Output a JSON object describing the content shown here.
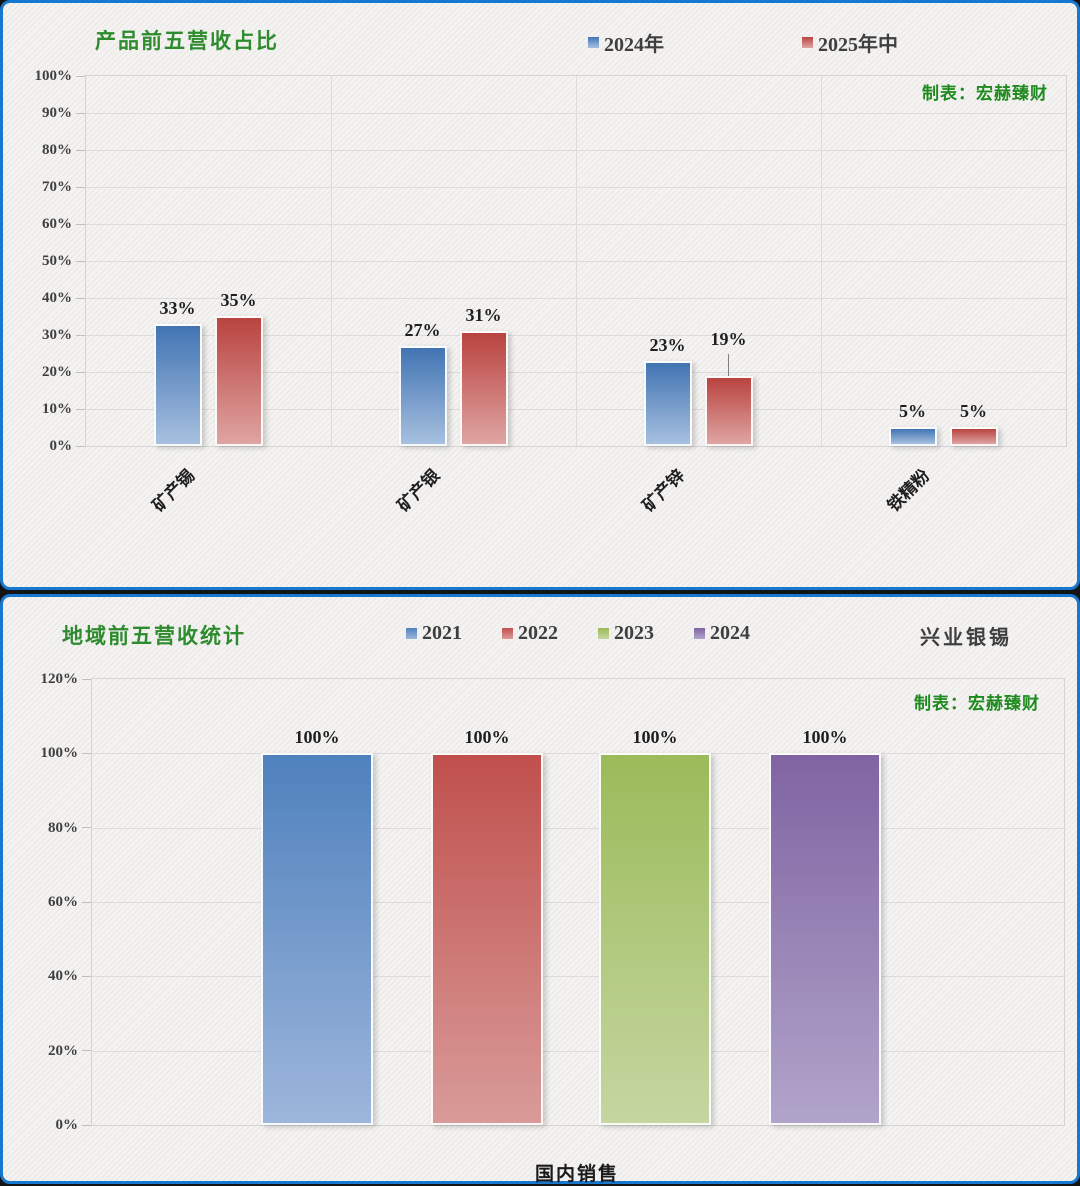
{
  "page": {
    "panel_border_color": "#1778cf",
    "title_color": "#2e8b2e",
    "background_texture": "light-diagonal-hatch"
  },
  "chart_data": [
    {
      "type": "bar",
      "title": "产品前五营收占比",
      "credit": "制表：宏赫臻财",
      "categories": [
        "矿产锡",
        "矿产银",
        "矿产锌",
        "铁精粉"
      ],
      "series": [
        {
          "name": "2024年",
          "values": [
            33,
            27,
            23,
            5
          ],
          "color_top": "#4274b3",
          "color_bottom": "#a7c0df"
        },
        {
          "name": "2025年中",
          "values": [
            35,
            31,
            19,
            5
          ],
          "color_top": "#b9433f",
          "color_bottom": "#dfa5a3"
        }
      ],
      "value_labels": [
        [
          "33%",
          "27%",
          "23%",
          "5%"
        ],
        [
          "35%",
          "31%",
          "19%",
          "5%"
        ]
      ],
      "ylim": [
        0,
        100
      ],
      "y_ticks": [
        "0%",
        "10%",
        "20%",
        "30%",
        "40%",
        "50%",
        "60%",
        "70%",
        "80%",
        "90%",
        "100%"
      ],
      "grid": true,
      "legend_position": "top"
    },
    {
      "type": "bar",
      "title": "地域前五营收统计",
      "company": "兴业银锡",
      "credit": "制表：宏赫臻财",
      "categories": [
        "国内销售"
      ],
      "xlabel": "国内销售",
      "series": [
        {
          "name": "2021",
          "values": [
            100
          ],
          "color_top": "#4f81bd",
          "color_bottom": "#9db6db"
        },
        {
          "name": "2022",
          "values": [
            100
          ],
          "color_top": "#c0504d",
          "color_bottom": "#d99b99"
        },
        {
          "name": "2023",
          "values": [
            100
          ],
          "color_top": "#9bbb59",
          "color_bottom": "#c5d6a1"
        },
        {
          "name": "2024",
          "values": [
            100
          ],
          "color_top": "#8064a2",
          "color_bottom": "#b1a4ca"
        }
      ],
      "value_labels": [
        [
          "100%"
        ],
        [
          "100%"
        ],
        [
          "100%"
        ],
        [
          "100%"
        ]
      ],
      "ylim": [
        0,
        120
      ],
      "y_ticks": [
        "0%",
        "20%",
        "40%",
        "60%",
        "80%",
        "100%",
        "120%"
      ],
      "grid": true,
      "legend_position": "top"
    }
  ]
}
